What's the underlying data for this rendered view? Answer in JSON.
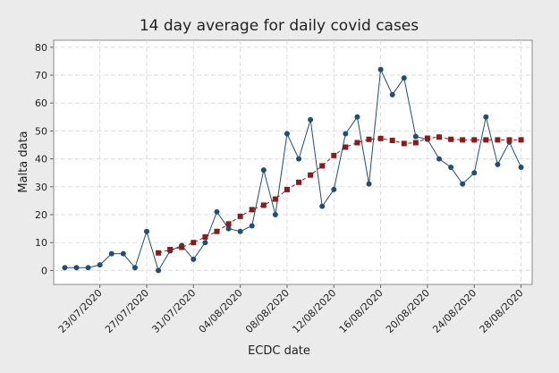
{
  "chart_data": {
    "type": "line",
    "title": "14 day average for daily covid cases",
    "x_label": "ECDC date",
    "y_label": "Malta data",
    "categories": [
      null,
      null,
      null,
      "23/07/2020",
      null,
      null,
      null,
      "27/07/2020",
      null,
      null,
      null,
      "31/07/2020",
      null,
      null,
      null,
      "04/08/2020",
      null,
      null,
      null,
      "08/08/2020",
      null,
      null,
      null,
      "12/08/2020",
      null,
      null,
      null,
      "16/08/2020",
      null,
      null,
      null,
      "20/08/2020",
      null,
      null,
      null,
      "24/08/2020",
      null,
      null,
      null,
      "28/08/2020"
    ],
    "series": [
      {
        "color": "#1f4e79",
        "marker": "circle",
        "dashed": false,
        "values": [
          1,
          1,
          1,
          2,
          6,
          6,
          1,
          14,
          0,
          7,
          9,
          4,
          10,
          21,
          15,
          14,
          16,
          36,
          20,
          49,
          40,
          54,
          23,
          29,
          49,
          55,
          31,
          72,
          63,
          69,
          48,
          47,
          40,
          37,
          31,
          35,
          55,
          38,
          46,
          37
        ]
      },
      {
        "color": "#8b1a1a",
        "marker": "square",
        "dashed": true,
        "values": [
          null,
          null,
          null,
          null,
          null,
          null,
          null,
          null,
          6.3,
          7.5,
          8.3,
          10,
          12,
          14,
          16.7,
          19.4,
          21.8,
          23.4,
          25.6,
          29,
          31.6,
          34.2,
          37.5,
          41.2,
          44.2,
          45.8,
          47,
          47.3,
          46.6,
          45.5,
          45.8,
          47.4,
          47.8,
          47,
          46.8,
          46.8,
          46.8,
          46.8,
          46.8,
          46.8
        ]
      }
    ],
    "ylim": [
      -5,
      82.5
    ],
    "yticks": [
      0,
      10,
      20,
      30,
      40,
      50,
      60,
      70,
      80
    ],
    "grid": true
  }
}
